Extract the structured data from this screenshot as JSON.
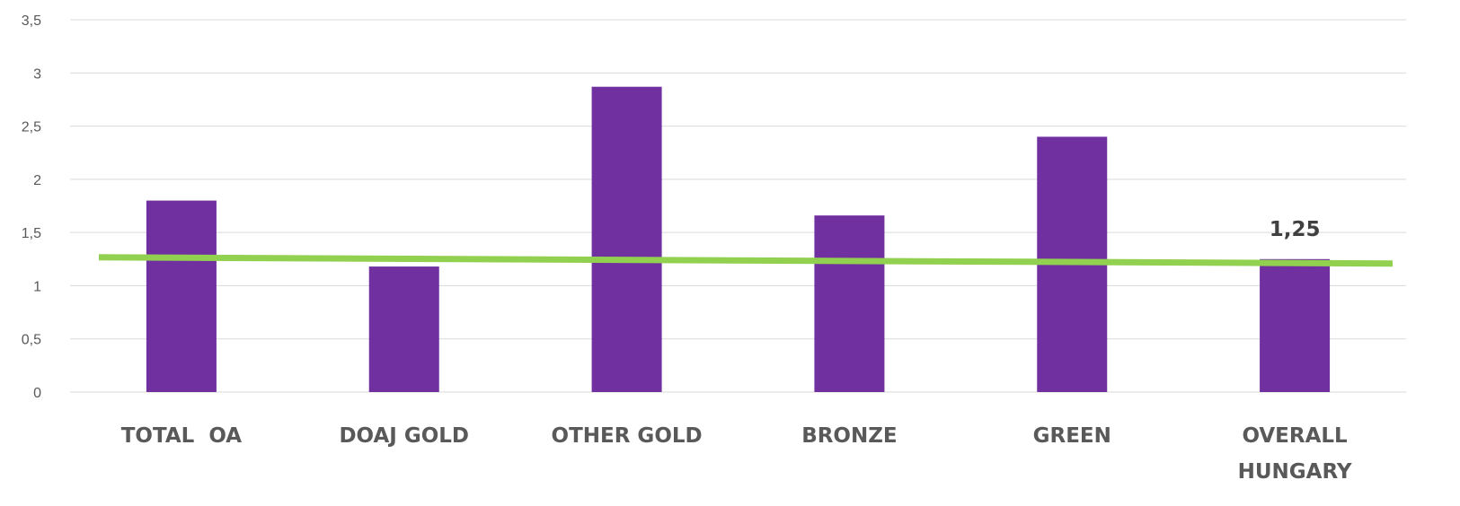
{
  "chart_data": {
    "type": "bar",
    "categories": [
      "TOTAL  OA",
      "DOAJ GOLD",
      "OTHER GOLD",
      "BRONZE",
      "GREEN",
      "OVERALL HUNGARY"
    ],
    "category_lines": [
      [
        "TOTAL  OA"
      ],
      [
        "DOAJ GOLD"
      ],
      [
        "OTHER GOLD"
      ],
      [
        "BRONZE"
      ],
      [
        "GREEN"
      ],
      [
        "OVERALL",
        "HUNGARY"
      ]
    ],
    "values": [
      1.8,
      1.18,
      2.87,
      1.66,
      2.4,
      1.25
    ],
    "reference_line": {
      "value": 1.25,
      "label": "1,25"
    },
    "yticks": [
      0,
      0.5,
      1,
      1.5,
      2,
      2.5,
      3,
      3.5
    ],
    "ytick_labels": [
      "0",
      "0,5",
      "1",
      "1,5",
      "2",
      "2,5",
      "3",
      "3,5"
    ],
    "ylim": [
      0,
      3.5
    ],
    "title": "",
    "xlabel": "",
    "ylabel": "",
    "grid": true,
    "legend": "none",
    "colors": {
      "bar": "#7030a0",
      "reference_line": "#92d050",
      "grid": "#d9d9d9"
    }
  }
}
